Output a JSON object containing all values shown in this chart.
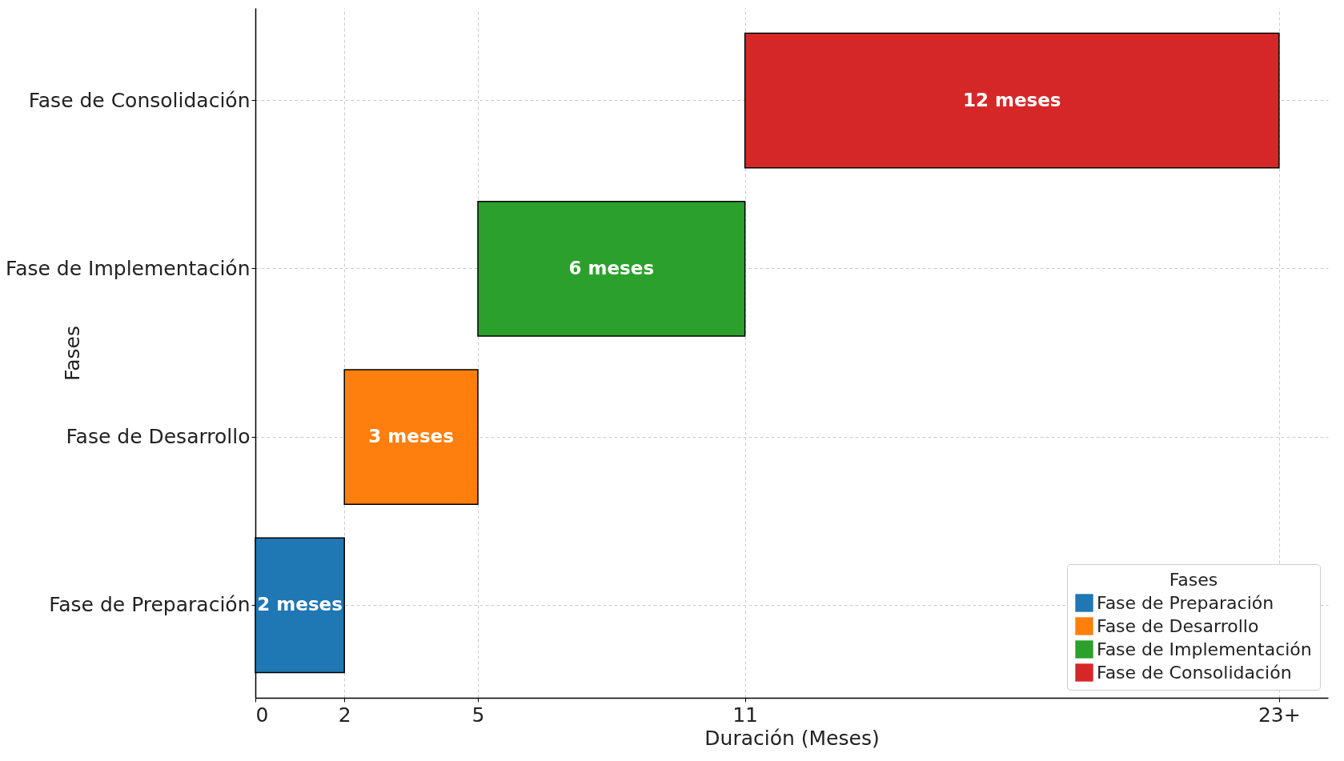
{
  "chart_data": {
    "type": "bar",
    "orientation": "horizontal",
    "xlabel": "Duración (Meses)",
    "ylabel": "Fases",
    "legend_title": "Fases",
    "categories": [
      "Fase de Consolidación",
      "Fase de Implementación",
      "Fase de Desarrollo",
      "Fase de Preparación"
    ],
    "series": [
      {
        "name": "Fase de Preparación",
        "color": "#1f77b4",
        "base": [
          null,
          null,
          null,
          0
        ],
        "values": [
          null,
          null,
          null,
          2
        ],
        "value_labels": [
          null,
          null,
          null,
          "2 meses"
        ]
      },
      {
        "name": "Fase de Desarrollo",
        "color": "#ff7f0e",
        "base": [
          null,
          null,
          2,
          null
        ],
        "values": [
          null,
          null,
          3,
          null
        ],
        "value_labels": [
          null,
          null,
          "3 meses",
          null
        ]
      },
      {
        "name": "Fase de Implementación",
        "color": "#2ca02c",
        "base": [
          null,
          5,
          null,
          null
        ],
        "values": [
          null,
          6,
          null,
          null
        ],
        "value_labels": [
          null,
          "6 meses",
          null,
          null
        ]
      },
      {
        "name": "Fase de Consolidación",
        "color": "#d62728",
        "base": [
          11,
          null,
          null,
          null
        ],
        "values": [
          12,
          null,
          null,
          null
        ],
        "value_labels": [
          "12 meses",
          null,
          null,
          null
        ]
      }
    ],
    "xlim": [
      0,
      24.1
    ],
    "xticks": [
      0,
      2,
      5,
      11,
      {
        "value": 23,
        "label": "23+"
      }
    ],
    "grid": true,
    "legend": "bottom right"
  }
}
